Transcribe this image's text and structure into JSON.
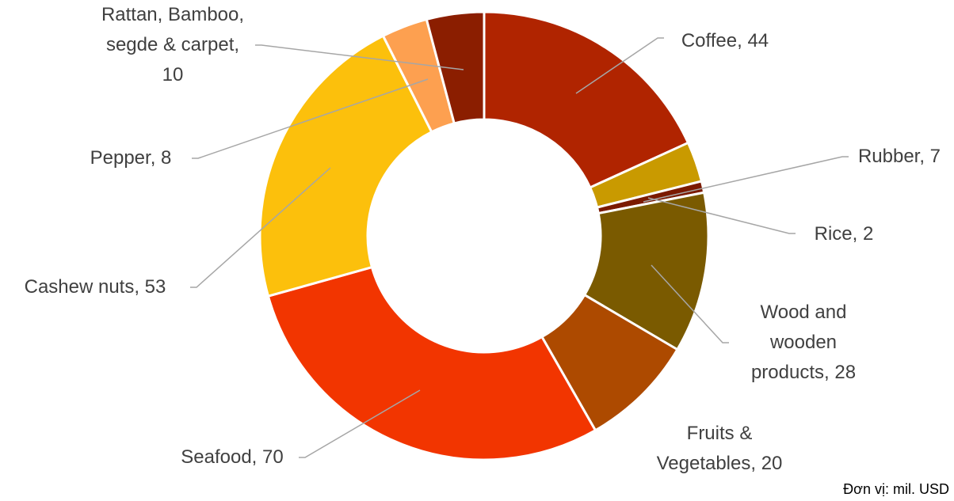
{
  "chart_data": {
    "type": "donut",
    "categories": [
      "Coffee",
      "Rubber",
      "Rice",
      "Wood and wooden products",
      "Fruits & Vegetables",
      "Seafood",
      "Cashew nuts",
      "Pepper",
      "Rattan, Bamboo, segde & carpet"
    ],
    "values": [
      44,
      7,
      2,
      28,
      20,
      70,
      53,
      8,
      10
    ],
    "value_labels": [
      "Coffee, 44",
      "Rubber, 7",
      "Rice, 2",
      "Wood and wooden products, 28",
      "Fruits & Vegetables, 20",
      "Seafood, 70",
      "Cashew nuts, 53",
      "Pepper, 8",
      "Rattan, Bamboo, segde & carpet, 10"
    ],
    "colors": [
      "#b02400",
      "#c99a00",
      "#7b1a00",
      "#7a5a00",
      "#ad4a00",
      "#f23500",
      "#fcc00c",
      "#fda050",
      "#8b1e00"
    ],
    "note": "Đơn vị: mil. USD"
  }
}
